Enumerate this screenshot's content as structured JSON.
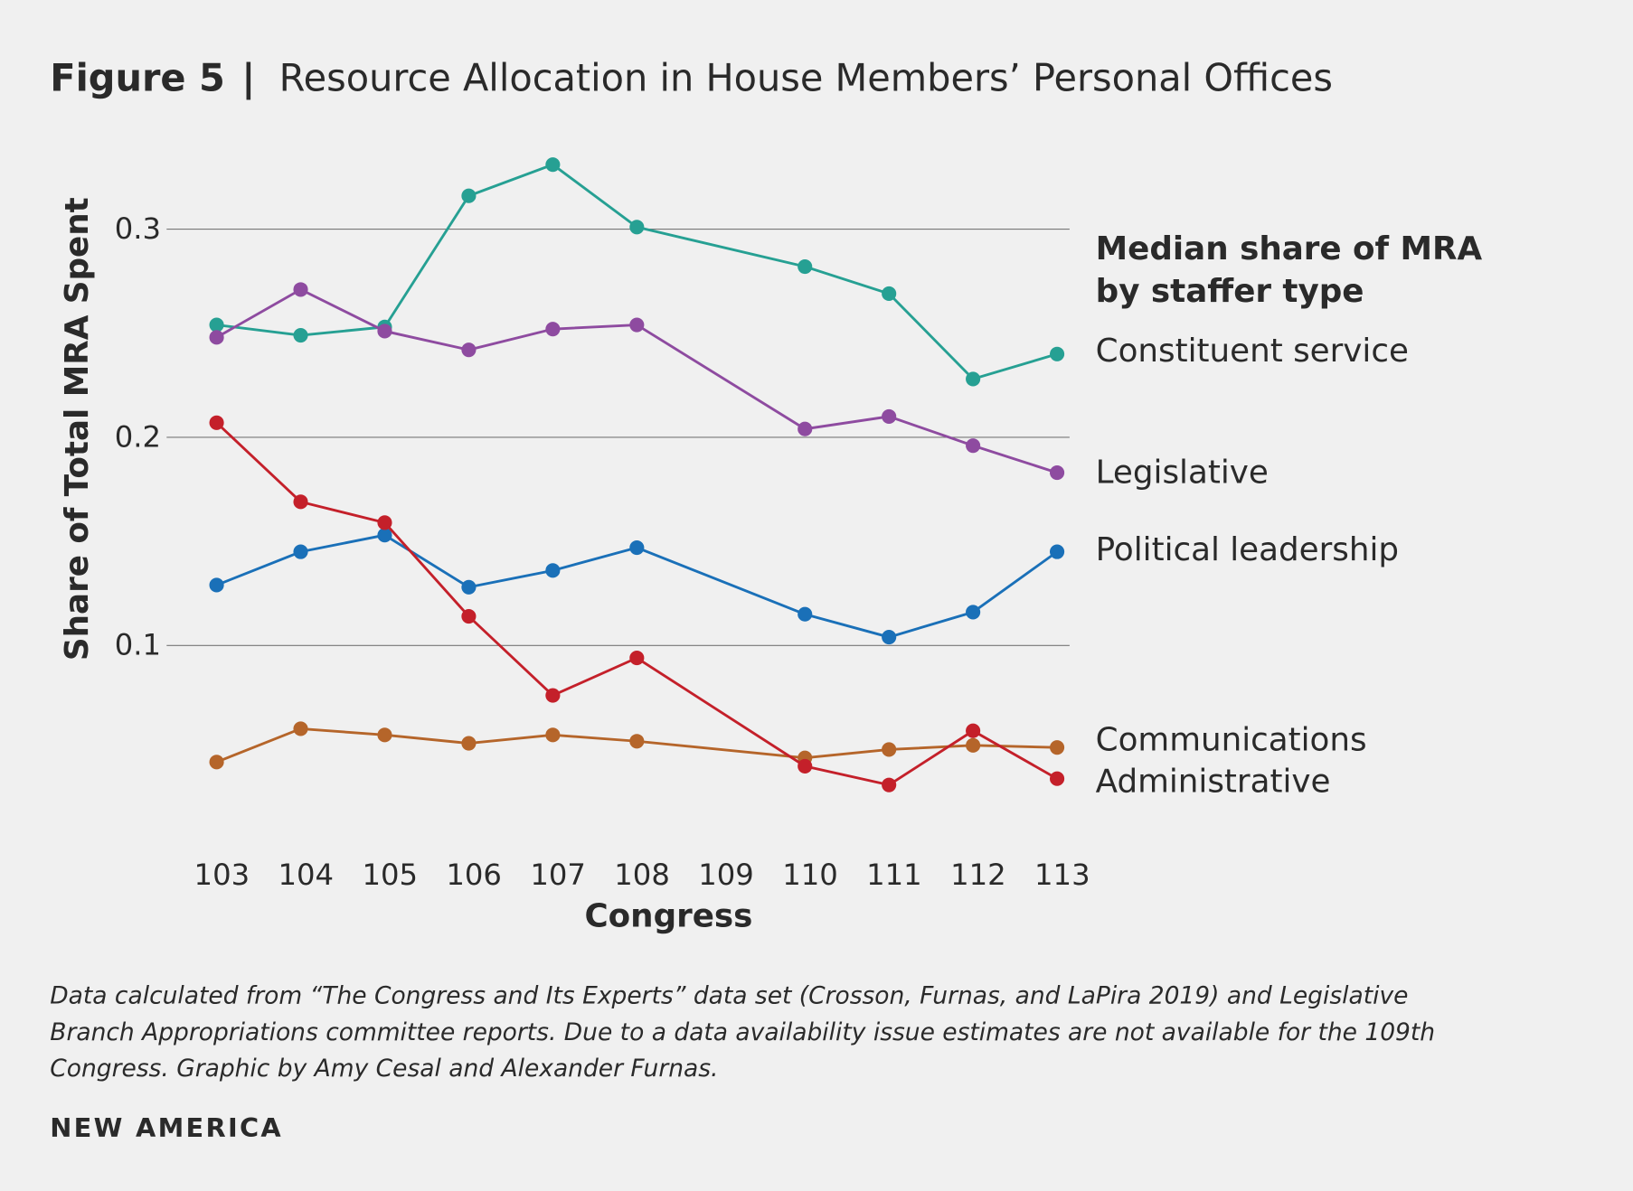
{
  "title": {
    "figure": "Figure 5",
    "separator": "|",
    "text": "Resource Allocation in House Members’ Personal Offices"
  },
  "footnote": [
    "Data calculated from “The Congress and Its Experts” data set (Crosson, Furnas, and LaPira 2019) and Legislative",
    "Branch Appropriations committee reports. Due to a data availability issue estimates are not available for the 109th",
    "Congress. Graphic by Amy Cesal and Alexander Furnas."
  ],
  "brand": "NEW AMERICA",
  "chart_data": {
    "type": "line",
    "title": "",
    "xlabel": "Congress",
    "ylabel": "Share of Total MRA Spent",
    "x": [
      "103",
      "104",
      "105",
      "106",
      "107",
      "108",
      "109",
      "110",
      "111",
      "112",
      "113"
    ],
    "yticks": [
      "0.1",
      "0.2",
      "0.3"
    ],
    "ylim": [
      0.02,
      0.34
    ],
    "grid": true,
    "legend_title": [
      "Median share of MRA",
      "by staffer type"
    ],
    "legend_placement": "right",
    "series": [
      {
        "name": "Constituent service",
        "color": "#26a093",
        "values": [
          0.254,
          0.249,
          0.253,
          0.316,
          0.331,
          0.301,
          null,
          0.282,
          0.269,
          0.228,
          0.24
        ]
      },
      {
        "name": "Legislative",
        "color": "#8e4ba0",
        "values": [
          0.248,
          0.271,
          0.251,
          0.242,
          0.252,
          0.254,
          null,
          0.204,
          0.21,
          0.196,
          0.183
        ]
      },
      {
        "name": "Political leadership",
        "color": "#1a70b8",
        "values": [
          0.129,
          0.145,
          0.153,
          0.128,
          0.136,
          0.147,
          null,
          0.115,
          0.104,
          0.116,
          0.145
        ]
      },
      {
        "name": "Communications",
        "color": "#b5652a",
        "values": [
          0.044,
          0.06,
          0.057,
          0.053,
          0.057,
          0.054,
          null,
          0.046,
          0.05,
          0.052,
          0.051
        ]
      },
      {
        "name": "Administrative",
        "color": "#c4202a",
        "values": [
          0.207,
          0.169,
          0.159,
          0.114,
          0.076,
          0.094,
          null,
          0.042,
          0.033,
          0.059,
          0.036
        ]
      }
    ]
  }
}
